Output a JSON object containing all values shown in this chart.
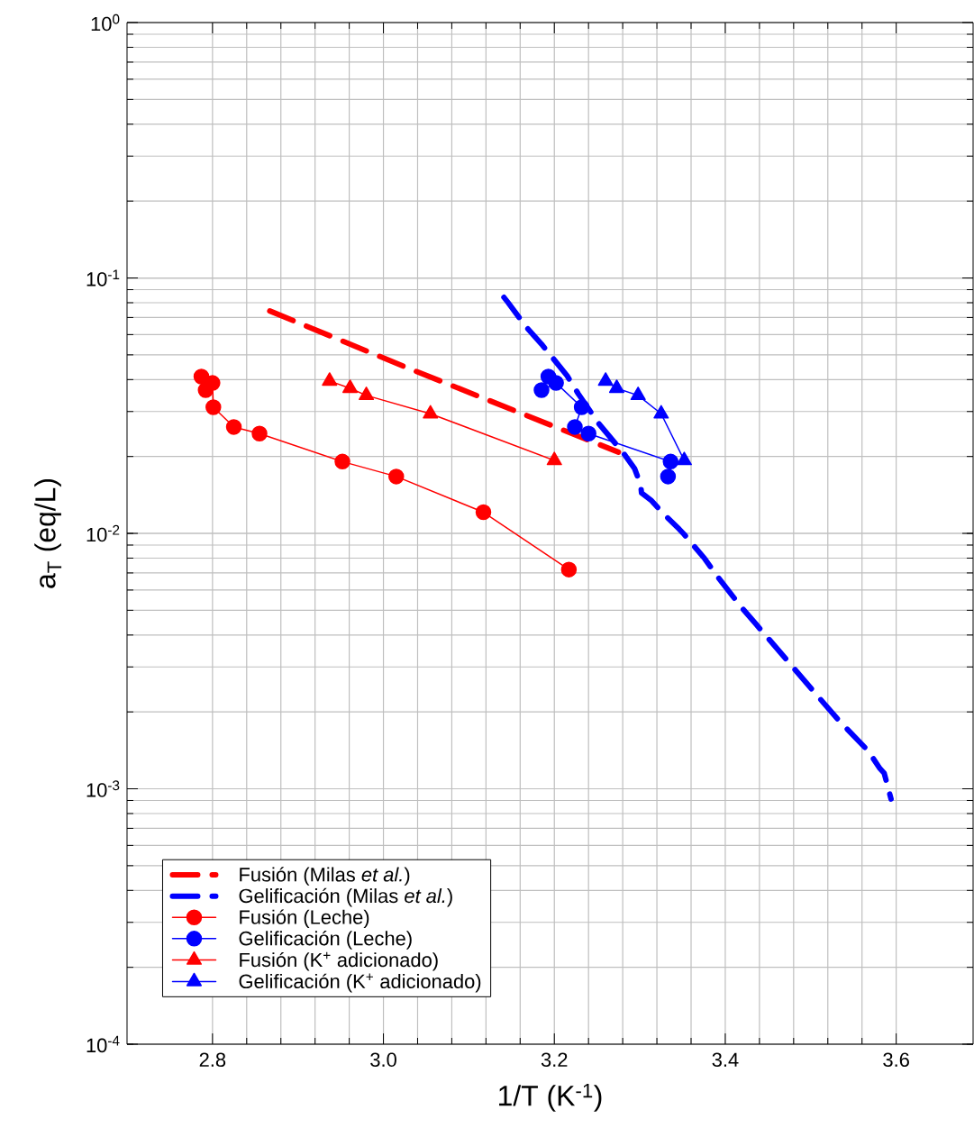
{
  "chart_data": {
    "type": "line",
    "xlabel": "1/T (K$^{-1}$)",
    "ylabel": "a$_{T}$ (eq/L)",
    "log": "y",
    "grid": true,
    "legend": "bottom left",
    "xlim": [
      2.7,
      3.69
    ],
    "xticks": [
      2.8,
      {
        "value": 3,
        "label": "3.0"
      },
      3.2,
      3.4,
      3.6
    ],
    "ylim": [
      0.0001,
      1
    ],
    "yticks": [
      {
        "value": 0.0001,
        "label": "10$^{-4}$"
      },
      {
        "value": 0.001,
        "label": "10$^{-3}$"
      },
      {
        "value": 0.01,
        "label": "10$^{-2}$"
      },
      {
        "value": 0.1,
        "label": "10$^{-1}$"
      },
      {
        "value": 1,
        "label": "10$^{0}$"
      }
    ],
    "series": [
      {
        "name": "Fusión (Milas *et al.*)",
        "color": "#ff0000",
        "marker": "none",
        "line_style": "dashed",
        "x": [
          2.867,
          3.025,
          3.275
        ],
        "values": [
          0.0743,
          0.0449,
          0.0208
        ]
      },
      {
        "name": "Gelificación (Milas *et al.*)",
        "color": "#0000ff",
        "marker": "none",
        "line_style": "dashed",
        "x": [
          3.141,
          3.146,
          3.167,
          3.185,
          3.215,
          3.228,
          3.252,
          3.281,
          3.294,
          3.301,
          3.302,
          3.313,
          3.327,
          3.346,
          3.352,
          3.376,
          3.391,
          3.418,
          3.436,
          3.467,
          3.485,
          3.515,
          3.533,
          3.567,
          3.581,
          3.586,
          3.594
        ],
        "values": [
          0.084,
          0.08,
          0.0643,
          0.0551,
          0.0414,
          0.0352,
          0.0269,
          0.0206,
          0.0179,
          0.0155,
          0.0144,
          0.0135,
          0.012,
          0.0104,
          0.0099,
          0.00796,
          0.00677,
          0.00518,
          0.00441,
          0.00334,
          0.00284,
          0.00217,
          0.00185,
          0.00141,
          0.0012,
          0.00115,
          0.000912
        ]
      },
      {
        "name": "Fusión (Leche)",
        "color": "#ff0000",
        "marker": "circle",
        "line_style": "solid",
        "x": [
          2.787,
          2.792,
          2.8,
          2.801,
          2.825,
          2.855,
          2.952,
          3.015,
          3.117,
          3.217
        ],
        "values": [
          0.0411,
          0.0364,
          0.0388,
          0.0312,
          0.0261,
          0.0246,
          0.0191,
          0.0167,
          0.0121,
          0.00722
        ]
      },
      {
        "name": "Gelificación (Leche)",
        "color": "#0000ff",
        "marker": "circle",
        "line_style": "solid",
        "x": [
          3.193,
          3.185,
          3.202,
          3.232,
          3.224,
          3.24,
          3.336,
          3.333
        ],
        "values": [
          0.0411,
          0.0364,
          0.0388,
          0.0312,
          0.0261,
          0.0246,
          0.0191,
          0.0167
        ]
      },
      {
        "name": "Fusión (K$^{+}$ adicionado)",
        "color": "#ff0000",
        "marker": "triangle",
        "line_style": "solid",
        "x": [
          2.937,
          2.961,
          2.98,
          3.055,
          3.2
        ],
        "values": [
          0.0395,
          0.037,
          0.0347,
          0.0294,
          0.0193
        ]
      },
      {
        "name": "Gelificación (K$^{+}$ adicionado)",
        "color": "#0000ff",
        "marker": "triangle",
        "line_style": "solid",
        "x": [
          3.26,
          3.273,
          3.298,
          3.325,
          3.352
        ],
        "values": [
          0.0395,
          0.037,
          0.0347,
          0.0294,
          0.0193
        ]
      }
    ]
  }
}
